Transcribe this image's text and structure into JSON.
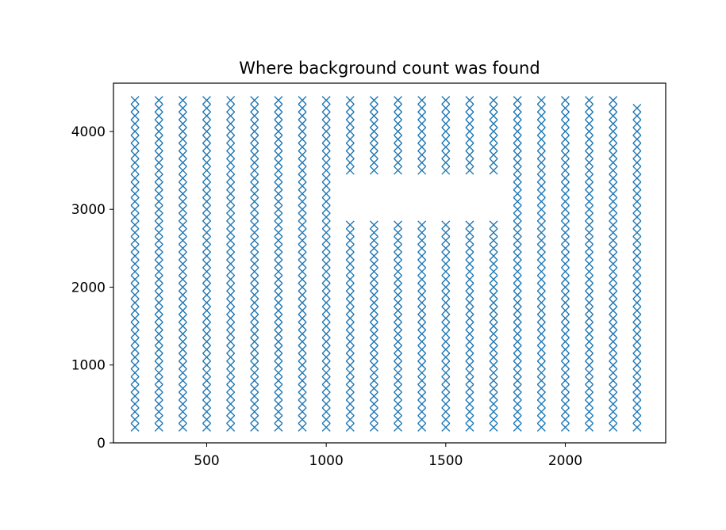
{
  "chart_data": {
    "type": "scatter",
    "title": "Where background count was found",
    "xlabel": "",
    "ylabel": "",
    "xlim": [
      110,
      2420
    ],
    "ylim": [
      0,
      4620
    ],
    "xticks": [
      500,
      1000,
      1500,
      2000
    ],
    "yticks": [
      0,
      1000,
      2000,
      3000,
      4000
    ],
    "xtick_labels": [
      "500",
      "1000",
      "1500",
      "2000"
    ],
    "ytick_labels": [
      "0",
      "1000",
      "2000",
      "3000",
      "4000"
    ],
    "marker": "x",
    "grid": false,
    "color": "#1f77b4",
    "x": [
      200,
      300,
      400,
      500,
      600,
      700,
      800,
      900,
      1000,
      1100,
      1200,
      1300,
      1400,
      1500,
      1600,
      1700,
      1800,
      1900,
      2000,
      2100,
      2200,
      2300
    ],
    "y_step": 100,
    "y_columns": [
      {
        "x": 200,
        "y_min": 200,
        "y_max": 4400
      },
      {
        "x": 300,
        "y_min": 200,
        "y_max": 4400
      },
      {
        "x": 400,
        "y_min": 200,
        "y_max": 4400
      },
      {
        "x": 500,
        "y_min": 200,
        "y_max": 4400
      },
      {
        "x": 600,
        "y_min": 200,
        "y_max": 4400
      },
      {
        "x": 700,
        "y_min": 200,
        "y_max": 4400
      },
      {
        "x": 800,
        "y_min": 200,
        "y_max": 4400
      },
      {
        "x": 900,
        "y_min": 200,
        "y_max": 4400
      },
      {
        "x": 1000,
        "y_min": 200,
        "y_max": 4400
      },
      {
        "x": 1100,
        "y_min": 200,
        "y_max": 4400,
        "gap": [
          2900,
          3400
        ]
      },
      {
        "x": 1200,
        "y_min": 200,
        "y_max": 4400,
        "gap": [
          2900,
          3400
        ]
      },
      {
        "x": 1300,
        "y_min": 200,
        "y_max": 4400,
        "gap": [
          2900,
          3400
        ]
      },
      {
        "x": 1400,
        "y_min": 200,
        "y_max": 4400,
        "gap": [
          2900,
          3400
        ]
      },
      {
        "x": 1500,
        "y_min": 200,
        "y_max": 4400,
        "gap": [
          2900,
          3400
        ]
      },
      {
        "x": 1600,
        "y_min": 200,
        "y_max": 4400,
        "gap": [
          2900,
          3400
        ]
      },
      {
        "x": 1700,
        "y_min": 200,
        "y_max": 4400,
        "gap": [
          2900,
          3400
        ]
      },
      {
        "x": 1800,
        "y_min": 200,
        "y_max": 4400
      },
      {
        "x": 1900,
        "y_min": 200,
        "y_max": 4400
      },
      {
        "x": 2000,
        "y_min": 200,
        "y_max": 4400
      },
      {
        "x": 2100,
        "y_min": 200,
        "y_max": 4400
      },
      {
        "x": 2200,
        "y_min": 200,
        "y_max": 4400
      },
      {
        "x": 2300,
        "y_min": 200,
        "y_max": 4300
      }
    ]
  }
}
